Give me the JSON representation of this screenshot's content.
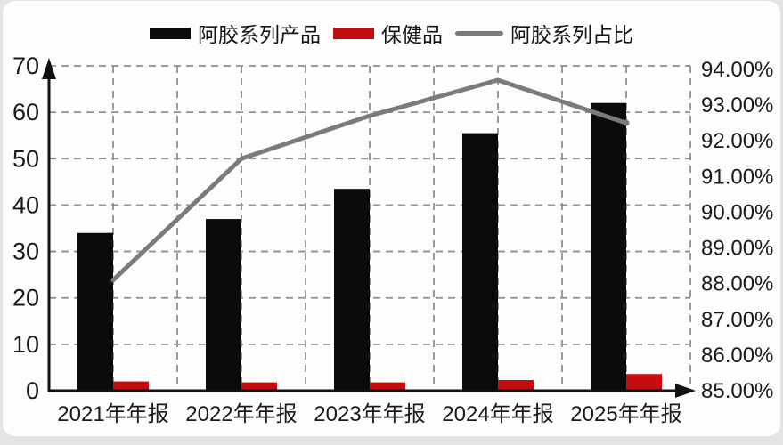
{
  "chart_data": {
    "type": "combo-bar-line",
    "title": "",
    "categories": [
      "2021年年报",
      "2022年年报",
      "2023年年报",
      "2024年年报",
      "2025年年报"
    ],
    "series": [
      {
        "name": "阿胶系列产品",
        "type": "bar",
        "axis": "left",
        "color": "#0b0b0b",
        "values": [
          34,
          37,
          43.5,
          55.5,
          62
        ]
      },
      {
        "name": "保健品",
        "type": "bar",
        "axis": "left",
        "color": "#c40d11",
        "values": [
          2.0,
          1.8,
          1.8,
          2.3,
          3.6
        ]
      },
      {
        "name": "阿胶系列占比",
        "type": "line",
        "axis": "right",
        "color": "#7b7b7b",
        "values": [
          88.1,
          91.5,
          92.7,
          93.7,
          92.5
        ]
      }
    ],
    "left_axis": {
      "min": 0,
      "max": 70,
      "step": 10,
      "tick_labels": [
        "0",
        "10",
        "20",
        "30",
        "40",
        "50",
        "60",
        "70"
      ]
    },
    "right_axis": {
      "min": 85,
      "max": 94,
      "step": 1,
      "tick_labels": [
        "85.00%",
        "86.00%",
        "87.00%",
        "88.00%",
        "89.00%",
        "90.00%",
        "91.00%",
        "92.00%",
        "93.00%",
        "94.00%"
      ]
    },
    "grid": {
      "style": "dashed",
      "color": "#8f8f8f"
    },
    "axis_color": "#111111",
    "legend_position": "top"
  }
}
